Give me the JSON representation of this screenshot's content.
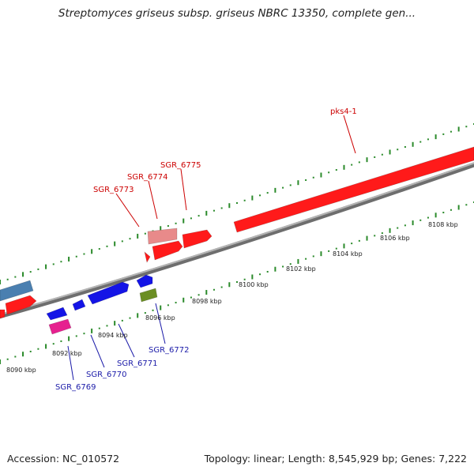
{
  "title": "Streptomyces griseus subsp. griseus NBRC 13350, complete gen...",
  "footer": {
    "accession": "Accession: NC_010572",
    "summary": "Topology: linear; Length: 8,545,929 bp; Genes: 7,222"
  },
  "colors": {
    "background": "#ffffff",
    "forward_label": "#cc0000",
    "reverse_label": "#1a1aa8",
    "tick": "#2a8a2a",
    "backbone": "#8c8c8c"
  },
  "scale_ticks": [
    "8090 kbp",
    "8092 kbp",
    "8094 kbp",
    "8096 kbp",
    "8098 kbp",
    "8100 kbp",
    "8102 kbp",
    "8104 kbp",
    "8106 kbp",
    "8108 kbp"
  ],
  "genes_forward": [
    {
      "label": "SGR_6773",
      "color": "#e08a8a"
    },
    {
      "label": "SGR_6774",
      "color": "#ff0000"
    },
    {
      "label": "SGR_6775",
      "color": "#ff0000"
    },
    {
      "label": "pks4-1",
      "color": "#ff0000"
    }
  ],
  "genes_reverse": [
    {
      "label": "SGR_6769",
      "color": "#e0208f"
    },
    {
      "label": "SGR_6770",
      "color": "#1414e6"
    },
    {
      "label": "SGR_6771",
      "color": "#1414e6"
    },
    {
      "label": "SGR_6772",
      "color": "#6b8e23"
    }
  ]
}
